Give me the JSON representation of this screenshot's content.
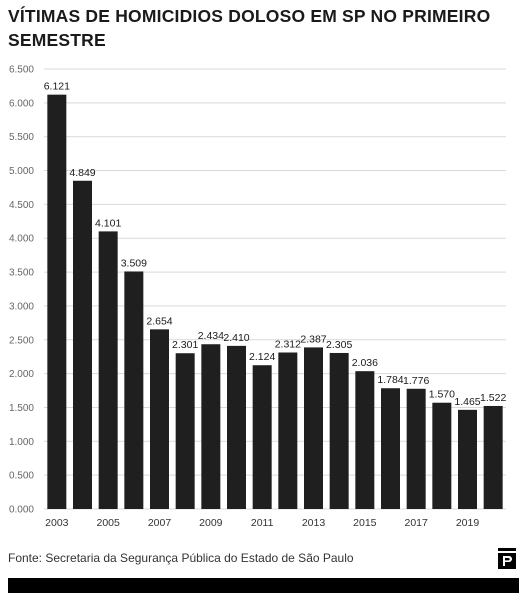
{
  "header": {
    "title": "VÍTIMAS DE HOMICIDIOS DOLOSO EM SP NO PRIMEIRO SEMESTRE"
  },
  "footer": {
    "source": "Fonte: Secretaria da Segurança Pública do Estado de São Paulo",
    "logo_icon": "folha-logo-icon"
  },
  "colors": {
    "bar": "#1f1f1f",
    "grid": "#d9d9d9",
    "background": "#ffffff"
  },
  "chart_data": {
    "type": "bar",
    "title": "VÍTIMAS DE HOMICIDIOS DOLOSO EM SP NO PRIMEIRO SEMESTRE",
    "xlabel": "",
    "ylabel": "",
    "categories": [
      "2003",
      "2004",
      "2005",
      "2006",
      "2007",
      "2008",
      "2009",
      "2010",
      "2011",
      "2012",
      "2013",
      "2014",
      "2015",
      "2016",
      "2017",
      "2018",
      "2019",
      "2020"
    ],
    "values": [
      6121,
      4849,
      4101,
      3509,
      2654,
      2301,
      2434,
      2410,
      2124,
      2312,
      2387,
      2305,
      2036,
      1784,
      1776,
      1570,
      1465,
      1522
    ],
    "value_labels": [
      "6.121",
      "4.849",
      "4.101",
      "3.509",
      "2.654",
      "2.301",
      "2.434",
      "2.410",
      "2.124",
      "2.312",
      "2.387",
      "2.305",
      "2.036",
      "1.784",
      "1.776",
      "1.570",
      "1.465",
      "1.522"
    ],
    "x_tick_labels": [
      "2003",
      "",
      "2005",
      "",
      "2007",
      "",
      "2009",
      "",
      "2011",
      "",
      "2013",
      "",
      "2015",
      "",
      "2017",
      "",
      "2019",
      ""
    ],
    "ylim": [
      0,
      6500
    ],
    "y_ticks": [
      0,
      500,
      1000,
      1500,
      2000,
      2500,
      3000,
      3500,
      4000,
      4500,
      5000,
      5500,
      6000,
      6500
    ],
    "y_tick_labels": [
      "0.000",
      "0.500",
      "1.000",
      "1.500",
      "2.000",
      "2.500",
      "3.000",
      "3.500",
      "4.000",
      "4.500",
      "5.000",
      "5.500",
      "6.000",
      "6.500"
    ],
    "grid": true,
    "legend": "none"
  }
}
